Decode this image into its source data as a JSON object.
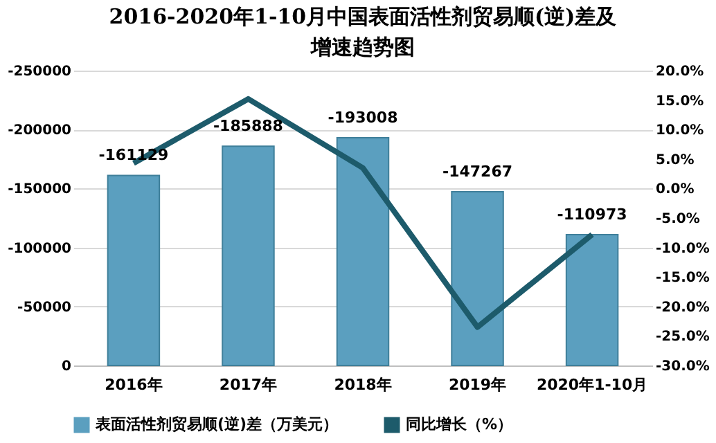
{
  "chart_data": {
    "type": "bar",
    "title": "2016-2020年1-10月中国表面活性剂贸易顺(逆)差及增速趋势图",
    "categories": [
      "2016年",
      "2017年",
      "2018年",
      "2019年",
      "2020年1-10月"
    ],
    "series": [
      {
        "name": "表面活性剂贸易顺(逆)差（万美元）",
        "color": "#5b9fbf",
        "values": [
          -161129,
          -185888,
          -193008,
          -147267,
          -110973
        ],
        "value_labels": [
          "-161129",
          "-185888",
          "-193008",
          "-147267",
          "-110973"
        ]
      },
      {
        "name": "同比增长（%）",
        "color": "#1d5b6b",
        "type": "line",
        "axis": "y2",
        "values": [
          4.3,
          15.2,
          3.5,
          -23.5,
          -7.8
        ]
      }
    ],
    "ylim": [
      0,
      -250000
    ],
    "yticks": [
      0,
      -50000,
      -100000,
      -150000,
      -200000,
      -250000
    ],
    "y2lim": [
      -30,
      20
    ],
    "y2ticks": [
      {
        "value": -30,
        "label": "-30.0%"
      },
      {
        "value": -25,
        "label": "-25.0%"
      },
      {
        "value": -20,
        "label": "-20.0%"
      },
      {
        "value": -15,
        "label": "-15.0%"
      },
      {
        "value": -10,
        "label": "-10.0%"
      },
      {
        "value": -5,
        "label": "-5.0%"
      },
      {
        "value": 0,
        "label": "0.0%"
      },
      {
        "value": 5,
        "label": "5.0%"
      },
      {
        "value": 10,
        "label": "10.0%"
      },
      {
        "value": 15,
        "label": "15.0%"
      },
      {
        "value": 20,
        "label": "20.0%"
      }
    ],
    "grid": "y",
    "legend": "bottom",
    "marker": "none",
    "line_style": "solid"
  }
}
